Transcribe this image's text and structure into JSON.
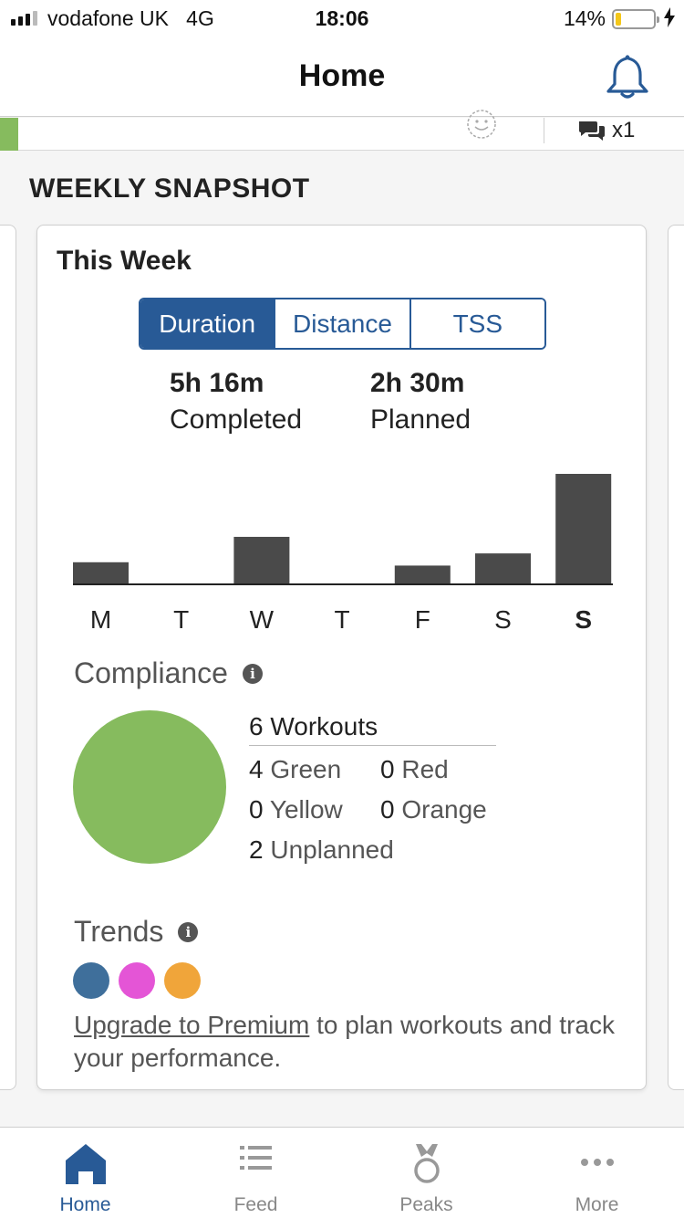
{
  "status_bar": {
    "carrier": "vodafone UK",
    "network": "4G",
    "time": "18:06",
    "battery_percent": "14%",
    "battery_level": 0.14
  },
  "nav": {
    "title": "Home",
    "bell_icon": "bell-icon"
  },
  "strip": {
    "comment_count": "x1",
    "icons": [
      "smiley-icon",
      "comments-icon"
    ]
  },
  "section_title": "WEEKLY SNAPSHOT",
  "card": {
    "title": "This Week",
    "segments": [
      {
        "label": "Duration",
        "active": true
      },
      {
        "label": "Distance",
        "active": false
      },
      {
        "label": "TSS",
        "active": false
      }
    ],
    "completed": {
      "value": "5h 16m",
      "label": "Completed"
    },
    "planned": {
      "value": "2h 30m",
      "label": "Planned"
    }
  },
  "chart_data": {
    "type": "bar",
    "categories": [
      "M",
      "T",
      "W",
      "T",
      "F",
      "S",
      "S"
    ],
    "values": [
      0.2,
      0,
      0.43,
      0,
      0.17,
      0.28,
      1.0
    ],
    "title": "",
    "xlabel": "",
    "ylabel": "",
    "ylim": [
      0,
      1
    ],
    "highlighted_category_index": 6,
    "bar_color": "#4a4a4a"
  },
  "compliance": {
    "title": "Compliance",
    "workouts": "6 Workouts",
    "circle_color": "#86bb5e",
    "items": [
      {
        "count": "4",
        "label": "Green"
      },
      {
        "count": "0",
        "label": "Red"
      },
      {
        "count": "0",
        "label": "Yellow"
      },
      {
        "count": "0",
        "label": "Orange"
      },
      {
        "count": "2",
        "label": "Unplanned"
      }
    ]
  },
  "trends": {
    "title": "Trends",
    "dot_colors": [
      "#3f6f9b",
      "#e455d6",
      "#f0a53a"
    ],
    "upgrade_link": "Upgrade to Premium",
    "upgrade_text": " to plan workouts and track your performance."
  },
  "tabs": [
    {
      "label": "Home",
      "icon": "home-icon",
      "active": true
    },
    {
      "label": "Feed",
      "icon": "feed-icon",
      "active": false
    },
    {
      "label": "Peaks",
      "icon": "medal-icon",
      "active": false
    },
    {
      "label": "More",
      "icon": "more-icon",
      "active": false
    }
  ],
  "colors": {
    "accent": "#285a96",
    "green": "#86bb5e"
  }
}
